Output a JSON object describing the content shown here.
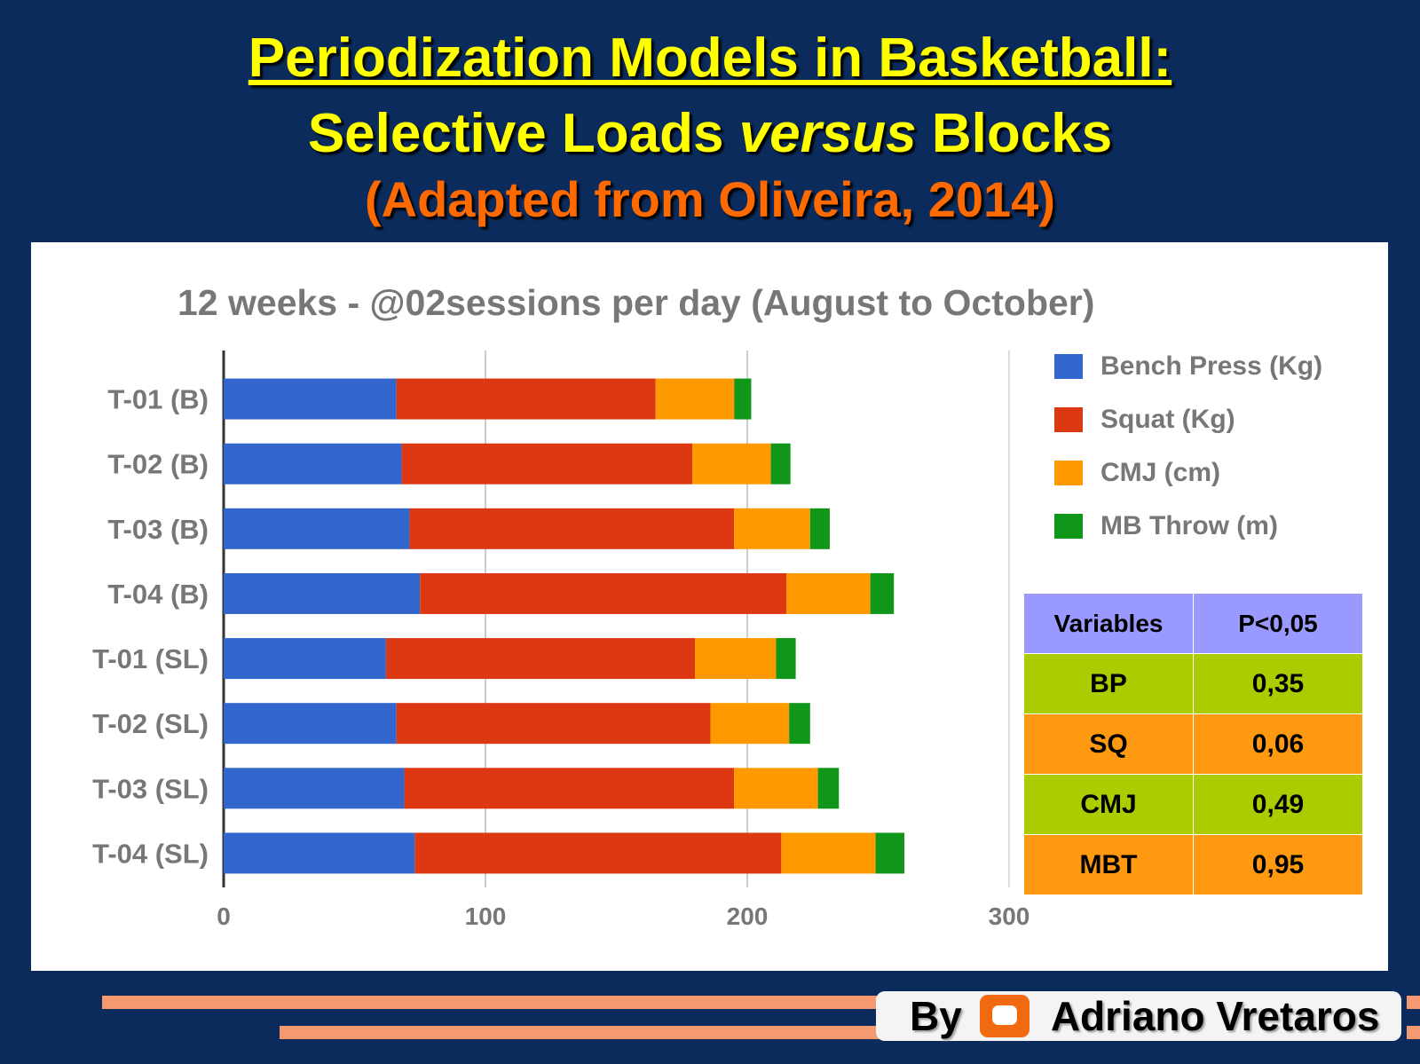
{
  "slide": {
    "title": " Periodization Models in Basketball:",
    "subtitle_pre": "Selective Loads ",
    "subtitle_em": "versus",
    "subtitle_post": " Blocks",
    "source": "(Adapted from Oliveira, 2014)",
    "footer_by": "By",
    "footer_author": "Adriano Vretaros",
    "footer_icon": "blogger-icon"
  },
  "chart_data": {
    "type": "bar",
    "orientation": "horizontal",
    "stacked": true,
    "title": "12 weeks - @02sessions per day (August to October)",
    "categories": [
      "T-01 (B)",
      "T-02 (B)",
      "T-03 (B)",
      "T-04 (B)",
      "T-01 (SL)",
      "T-02 (SL)",
      "T-03 (SL)",
      "T-04 (SL)"
    ],
    "series": [
      {
        "name": "Bench Press (Kg)",
        "color": "#3366cc",
        "values": [
          66,
          68,
          71,
          75,
          62,
          66,
          69,
          73
        ]
      },
      {
        "name": "Squat (Kg)",
        "color": "#dc3912",
        "values": [
          99,
          111,
          124,
          140,
          118,
          120,
          126,
          140
        ]
      },
      {
        "name": "CMJ (cm)",
        "color": "#ff9900",
        "values": [
          30,
          30,
          29,
          32,
          31,
          30,
          32,
          36
        ]
      },
      {
        "name": "MB Throw (m)",
        "color": "#109618",
        "values": [
          6.5,
          7.5,
          7.5,
          9,
          7.5,
          8,
          8,
          11
        ]
      }
    ],
    "xlim": [
      0,
      300
    ],
    "xticks": [
      "0",
      "100",
      "200",
      "300"
    ],
    "grid": true,
    "legend": "right"
  },
  "stats_table": {
    "headers": [
      "Variables",
      "P<0,05"
    ],
    "rows": [
      [
        "BP",
        "0,35"
      ],
      [
        "SQ",
        "0,06"
      ],
      [
        "CMJ",
        "0,49"
      ],
      [
        "MBT",
        "0,95"
      ]
    ]
  }
}
